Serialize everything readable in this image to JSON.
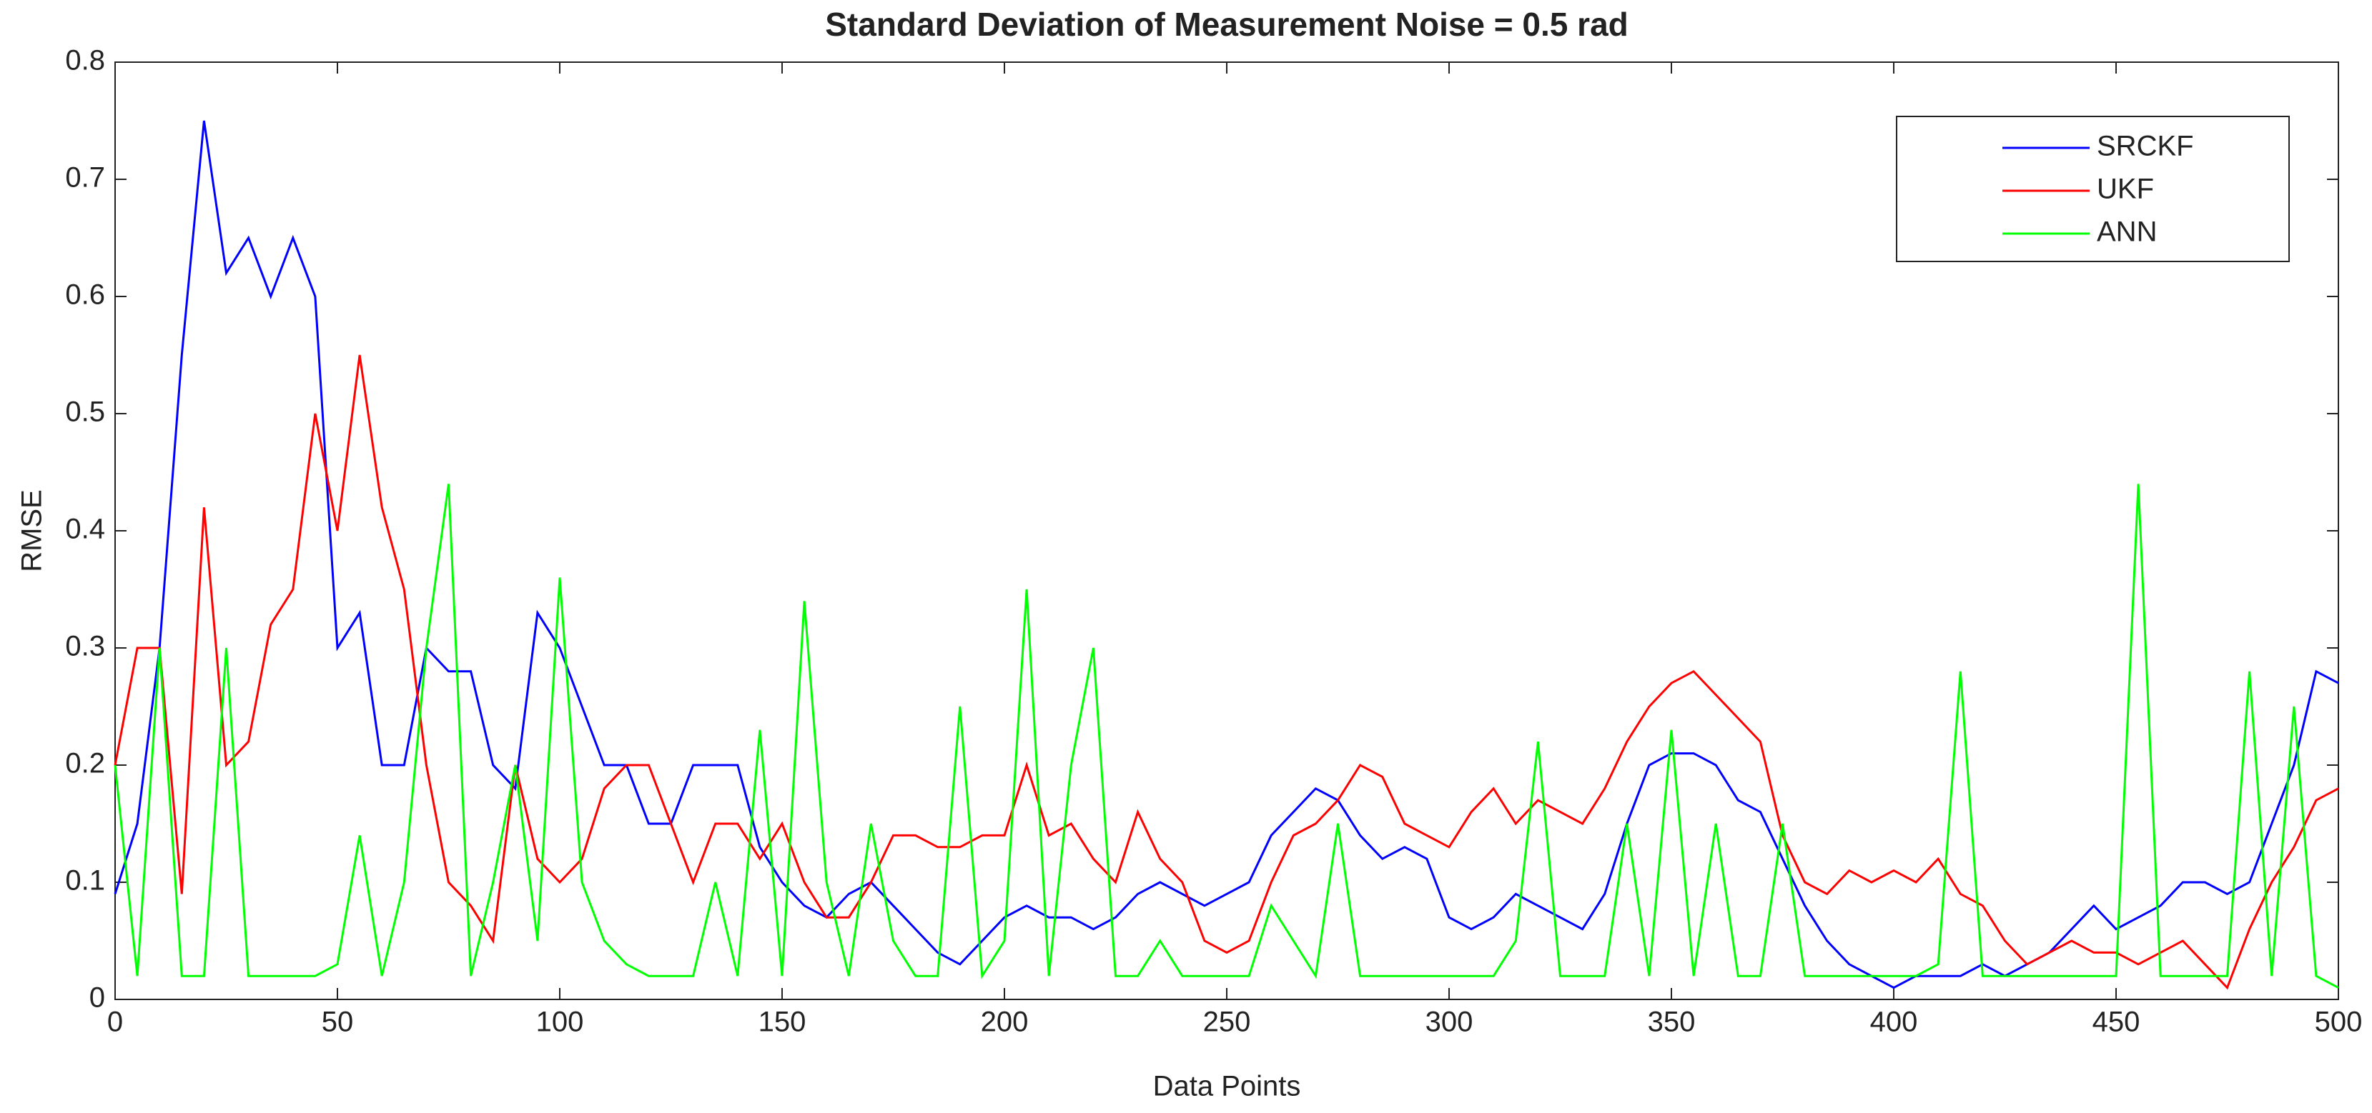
{
  "chart_data": {
    "type": "line",
    "title": "Standard Deviation of Measurement Noise = 0.5 rad",
    "xlabel": "Data Points",
    "ylabel": "RMSE",
    "x": [
      0,
      5,
      10,
      15,
      20,
      25,
      30,
      35,
      40,
      45,
      50,
      55,
      60,
      65,
      70,
      75,
      80,
      85,
      90,
      95,
      100,
      105,
      110,
      115,
      120,
      125,
      130,
      135,
      140,
      145,
      150,
      155,
      160,
      165,
      170,
      175,
      180,
      185,
      190,
      195,
      200,
      205,
      210,
      215,
      220,
      225,
      230,
      235,
      240,
      245,
      250,
      255,
      260,
      265,
      270,
      275,
      280,
      285,
      290,
      295,
      300,
      305,
      310,
      315,
      320,
      325,
      330,
      335,
      340,
      345,
      350,
      355,
      360,
      365,
      370,
      375,
      380,
      385,
      390,
      395,
      400,
      405,
      410,
      415,
      420,
      425,
      430,
      435,
      440,
      445,
      450,
      455,
      460,
      465,
      470,
      475,
      480,
      485,
      490,
      495,
      500
    ],
    "series": [
      {
        "name": "SRCKF",
        "color": "#0000ff",
        "values": [
          0.09,
          0.15,
          0.3,
          0.55,
          0.75,
          0.62,
          0.65,
          0.6,
          0.65,
          0.6,
          0.3,
          0.33,
          0.2,
          0.2,
          0.3,
          0.28,
          0.28,
          0.2,
          0.18,
          0.33,
          0.3,
          0.25,
          0.2,
          0.2,
          0.15,
          0.15,
          0.2,
          0.2,
          0.2,
          0.13,
          0.1,
          0.08,
          0.07,
          0.09,
          0.1,
          0.08,
          0.06,
          0.04,
          0.03,
          0.05,
          0.07,
          0.08,
          0.07,
          0.07,
          0.06,
          0.07,
          0.09,
          0.1,
          0.09,
          0.08,
          0.09,
          0.1,
          0.14,
          0.16,
          0.18,
          0.17,
          0.14,
          0.12,
          0.13,
          0.12,
          0.07,
          0.06,
          0.07,
          0.09,
          0.08,
          0.07,
          0.06,
          0.09,
          0.15,
          0.2,
          0.21,
          0.21,
          0.2,
          0.17,
          0.16,
          0.12,
          0.08,
          0.05,
          0.03,
          0.02,
          0.01,
          0.02,
          0.02,
          0.02,
          0.03,
          0.02,
          0.03,
          0.04,
          0.06,
          0.08,
          0.06,
          0.07,
          0.08,
          0.1,
          0.1,
          0.09,
          0.1,
          0.15,
          0.2,
          0.28,
          0.27
        ]
      },
      {
        "name": "UKF",
        "color": "#ff0000",
        "values": [
          0.2,
          0.3,
          0.3,
          0.09,
          0.42,
          0.2,
          0.22,
          0.32,
          0.35,
          0.5,
          0.4,
          0.55,
          0.42,
          0.35,
          0.2,
          0.1,
          0.08,
          0.05,
          0.2,
          0.12,
          0.1,
          0.12,
          0.18,
          0.2,
          0.2,
          0.15,
          0.1,
          0.15,
          0.15,
          0.12,
          0.15,
          0.1,
          0.07,
          0.07,
          0.1,
          0.14,
          0.14,
          0.13,
          0.13,
          0.14,
          0.14,
          0.2,
          0.14,
          0.15,
          0.12,
          0.1,
          0.16,
          0.12,
          0.1,
          0.05,
          0.04,
          0.05,
          0.1,
          0.14,
          0.15,
          0.17,
          0.2,
          0.19,
          0.15,
          0.14,
          0.13,
          0.16,
          0.18,
          0.15,
          0.17,
          0.16,
          0.15,
          0.18,
          0.22,
          0.25,
          0.27,
          0.28,
          0.26,
          0.24,
          0.22,
          0.14,
          0.1,
          0.09,
          0.11,
          0.1,
          0.11,
          0.1,
          0.12,
          0.09,
          0.08,
          0.05,
          0.03,
          0.04,
          0.05,
          0.04,
          0.04,
          0.03,
          0.04,
          0.05,
          0.03,
          0.01,
          0.06,
          0.1,
          0.13,
          0.17,
          0.18
        ]
      },
      {
        "name": "ANN",
        "color": "#00ff00",
        "values": [
          0.2,
          0.02,
          0.3,
          0.02,
          0.02,
          0.3,
          0.02,
          0.02,
          0.02,
          0.02,
          0.03,
          0.14,
          0.02,
          0.1,
          0.3,
          0.44,
          0.02,
          0.1,
          0.2,
          0.05,
          0.36,
          0.1,
          0.05,
          0.03,
          0.02,
          0.02,
          0.02,
          0.1,
          0.02,
          0.23,
          0.02,
          0.34,
          0.1,
          0.02,
          0.15,
          0.05,
          0.02,
          0.02,
          0.25,
          0.02,
          0.05,
          0.35,
          0.02,
          0.2,
          0.3,
          0.02,
          0.02,
          0.05,
          0.02,
          0.02,
          0.02,
          0.02,
          0.08,
          0.05,
          0.02,
          0.15,
          0.02,
          0.02,
          0.02,
          0.02,
          0.02,
          0.02,
          0.02,
          0.05,
          0.22,
          0.02,
          0.02,
          0.02,
          0.15,
          0.02,
          0.23,
          0.02,
          0.15,
          0.02,
          0.02,
          0.15,
          0.02,
          0.02,
          0.02,
          0.02,
          0.02,
          0.02,
          0.03,
          0.28,
          0.02,
          0.02,
          0.02,
          0.02,
          0.02,
          0.02,
          0.02,
          0.44,
          0.02,
          0.02,
          0.02,
          0.02,
          0.28,
          0.02,
          0.25,
          0.02,
          0.01
        ]
      }
    ],
    "xlim": [
      0,
      500
    ],
    "ylim": [
      0,
      0.8
    ],
    "xticks": [
      0,
      50,
      100,
      150,
      200,
      250,
      300,
      350,
      400,
      450,
      500
    ],
    "yticks": [
      0,
      0.1,
      0.2,
      0.3,
      0.4,
      0.5,
      0.6,
      0.7,
      0.8
    ],
    "grid": false,
    "legend": "northeast"
  }
}
